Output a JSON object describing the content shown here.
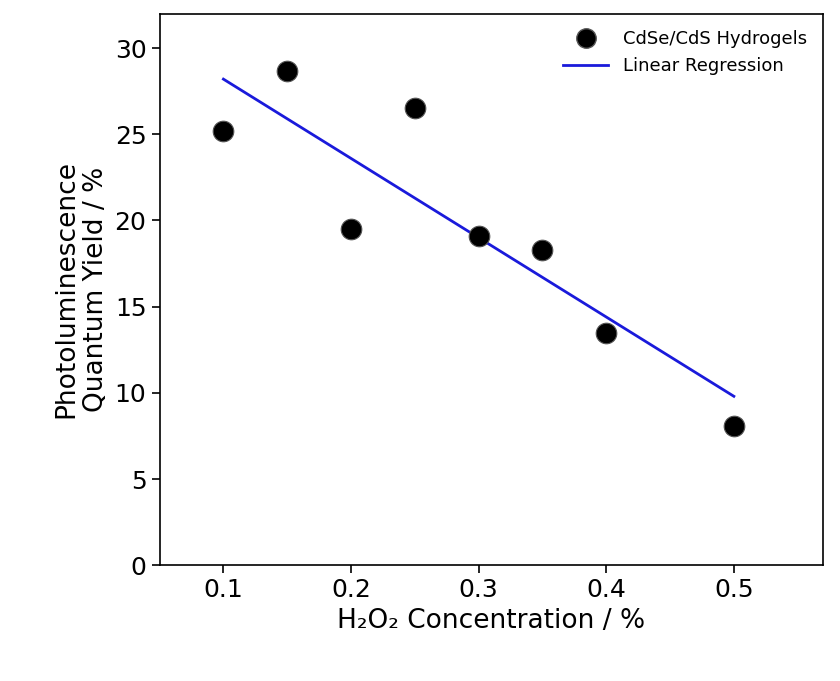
{
  "chart_data": {
    "type": "scatter",
    "x_label": "H₂O₂ Concentration / %",
    "y_label": "Photoluminescence\nQuantum Yield / %",
    "series": [
      {
        "name": "CdSe/CdS Hydrogels",
        "type": "scatter",
        "color": "#000000",
        "marker": "circle",
        "x": [
          0.1,
          0.15,
          0.2,
          0.25,
          0.3,
          0.35,
          0.4,
          0.5
        ],
        "values": [
          25.2,
          28.7,
          19.5,
          26.5,
          19.1,
          18.3,
          13.5,
          8.1
        ]
      },
      {
        "name": "Linear Regression",
        "type": "line",
        "color": "#1a1adb",
        "line_style": "solid",
        "x": [
          0.1,
          0.5
        ],
        "values": [
          28.2,
          9.8
        ]
      }
    ],
    "xlim": [
      0.05,
      0.57
    ],
    "xticks": [
      0.1,
      0.2,
      0.3,
      0.4,
      0.5
    ],
    "ylim": [
      0,
      32
    ],
    "yticks": [
      0,
      5,
      10,
      15,
      20,
      25,
      30
    ],
    "legend": "upper right",
    "grid": false
  }
}
